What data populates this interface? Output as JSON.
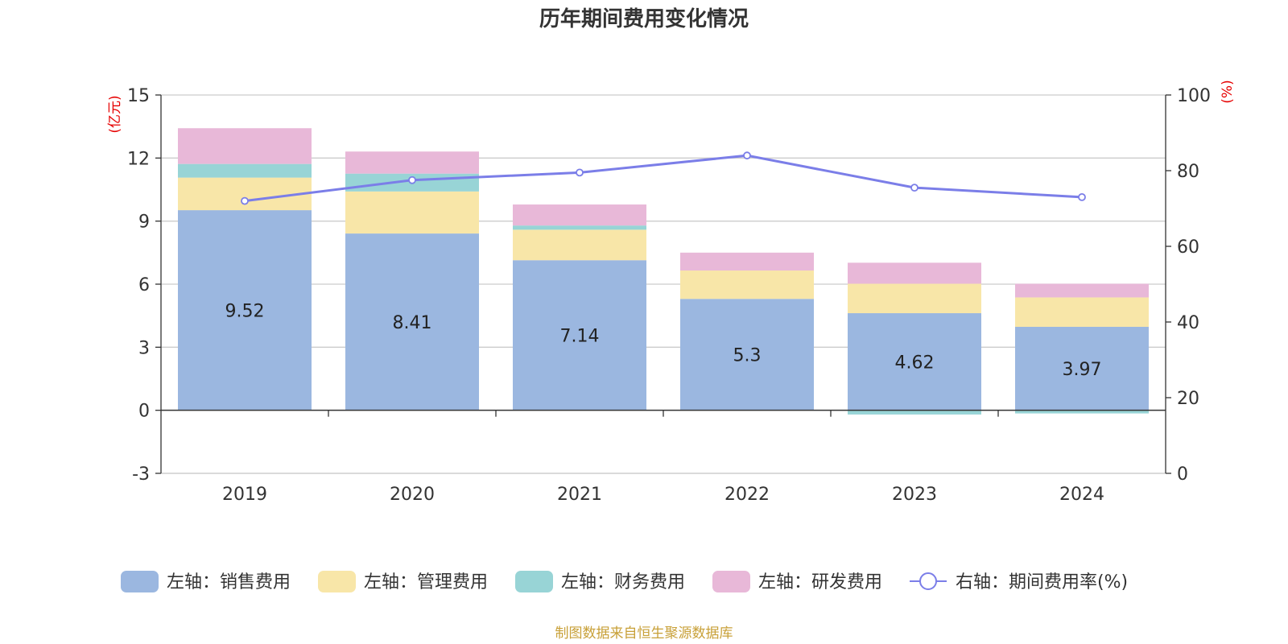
{
  "chart_data": {
    "type": "bar",
    "title": "历年期间费用变化情况",
    "categories": [
      "2019",
      "2020",
      "2021",
      "2022",
      "2023",
      "2024"
    ],
    "left_axis": {
      "unit": "(亿元)",
      "ylim": [
        -3,
        15
      ],
      "ticks": [
        -3,
        0,
        3,
        6,
        9,
        12,
        15
      ]
    },
    "right_axis": {
      "unit": "(%)",
      "ylim": [
        0,
        100
      ],
      "ticks": [
        0,
        20,
        40,
        60,
        80,
        100
      ]
    },
    "series": [
      {
        "name": "左轴：销售费用",
        "axis": "left",
        "stack": true,
        "color": "#9bb7e0",
        "values": [
          9.52,
          8.41,
          7.14,
          5.3,
          4.62,
          3.97
        ],
        "labels": [
          "9.52",
          "8.41",
          "7.14",
          "5.3",
          "4.62",
          "3.97"
        ]
      },
      {
        "name": "左轴：管理费用",
        "axis": "left",
        "stack": true,
        "color": "#f8e6a8",
        "values": [
          1.55,
          2.0,
          1.45,
          1.35,
          1.4,
          1.4
        ]
      },
      {
        "name": "左轴：财务费用",
        "axis": "left",
        "stack": true,
        "color": "#98d4d6",
        "values": [
          0.65,
          0.85,
          0.2,
          0.0,
          -0.2,
          -0.15
        ]
      },
      {
        "name": "左轴：研发费用",
        "axis": "left",
        "stack": true,
        "color": "#e8b8d8",
        "values": [
          1.7,
          1.05,
          1.0,
          0.85,
          1.0,
          0.65
        ]
      },
      {
        "name": "右轴：期间费用率(%)",
        "axis": "right",
        "type": "line",
        "color": "#7b7ee8",
        "values": [
          72,
          77.5,
          79.5,
          84,
          75.5,
          73
        ]
      }
    ]
  },
  "source": "制图数据来自恒生聚源数据库"
}
